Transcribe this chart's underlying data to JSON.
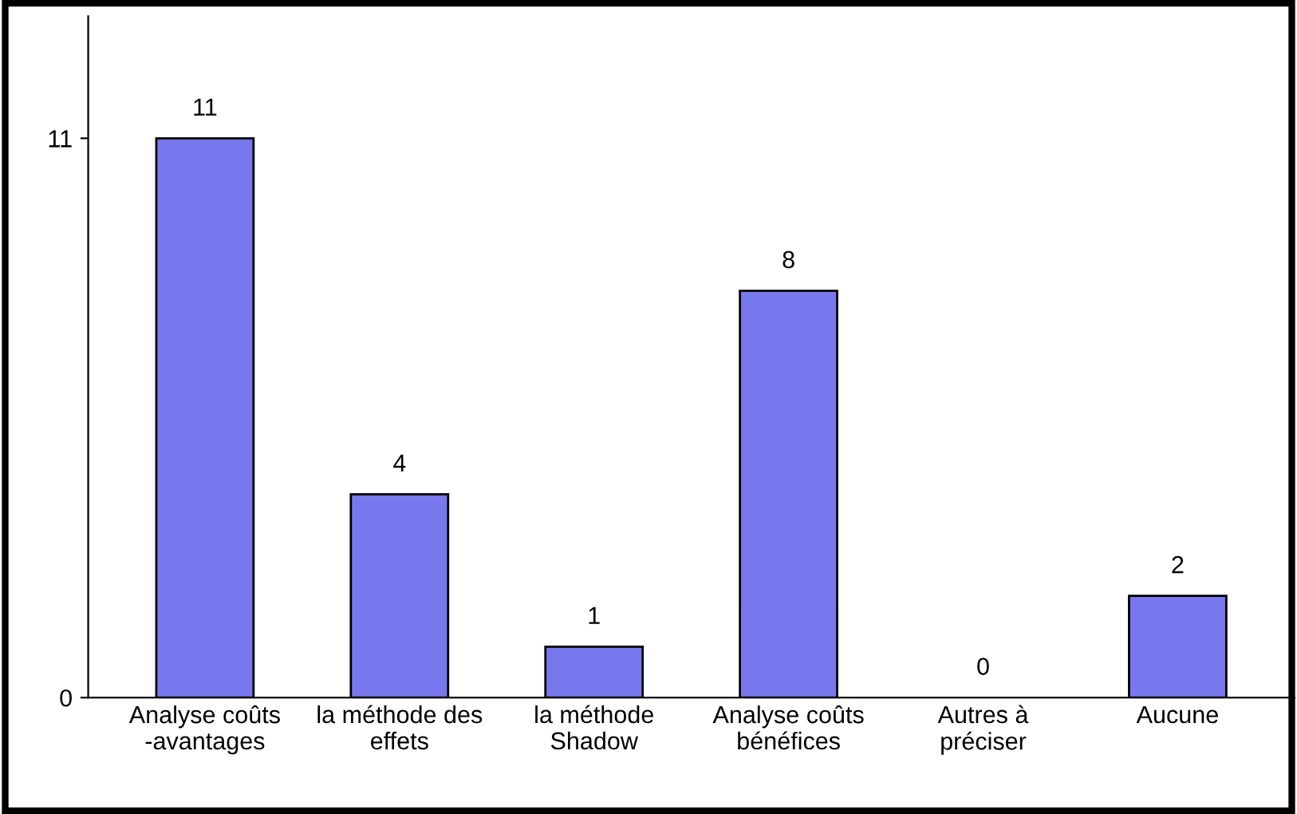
{
  "chart_data": {
    "type": "bar",
    "categories": [
      "Analyse coûts\n-avantages",
      "la méthode des\neffets",
      "la méthode\nShadow",
      "Analyse coûts\nbénéfices",
      "Autres à\npréciser",
      "Aucune"
    ],
    "values": [
      11,
      4,
      1,
      8,
      0,
      2
    ],
    "color": "#7878ee",
    "ylim": [
      0,
      13.4
    ],
    "yticks": [
      0,
      11
    ],
    "data_labels": true,
    "grid": false
  }
}
